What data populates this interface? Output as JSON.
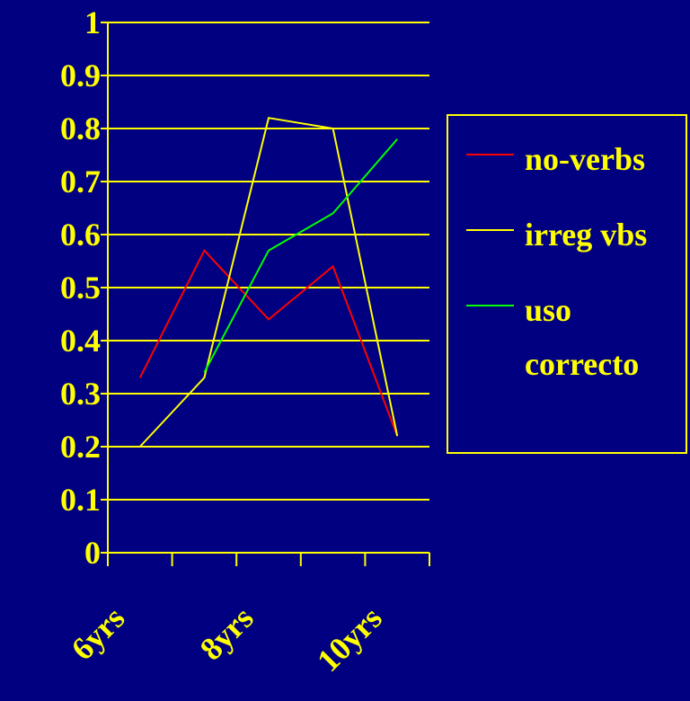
{
  "chart_data": {
    "type": "line",
    "categories": [
      "6yrs",
      null,
      "8yrs",
      null,
      "10yrs"
    ],
    "series": [
      {
        "name": "no-verbs",
        "color": "#ff0000",
        "values": [
          0.33,
          0.57,
          0.44,
          0.54,
          0.22
        ]
      },
      {
        "name": "irreg vbs",
        "color": "#ffff00",
        "values": [
          0.2,
          0.33,
          0.82,
          0.8,
          0.22
        ]
      },
      {
        "name": "uso correcto",
        "color": "#00ff00",
        "values": [
          null,
          0.34,
          0.57,
          0.64,
          0.78
        ]
      }
    ],
    "ylim": [
      0,
      1
    ],
    "yticks": [
      0,
      0.1,
      0.2,
      0.3,
      0.4,
      0.5,
      0.6,
      0.7,
      0.8,
      0.9,
      1
    ],
    "grid": true,
    "legend": "right"
  }
}
